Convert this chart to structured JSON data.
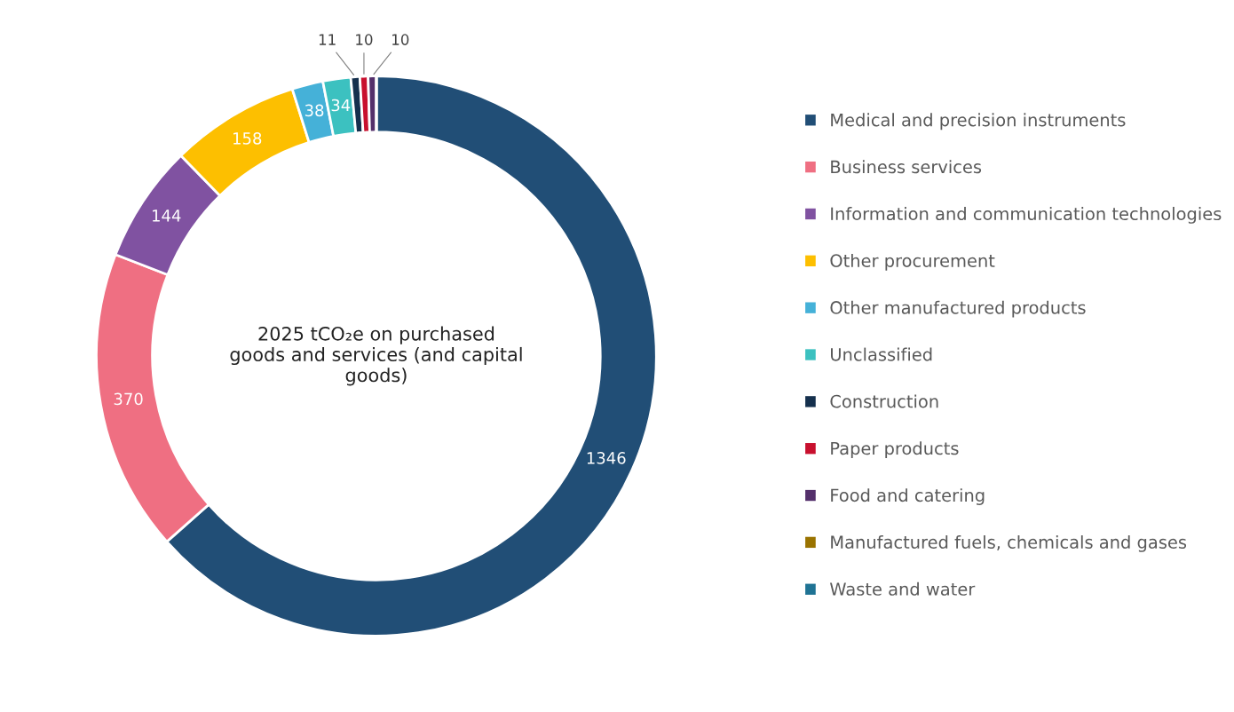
{
  "chart_data": {
    "type": "donut",
    "title": "2025 tCO₂e on purchased goods and services (and capital goods)",
    "categories": [
      "Medical and precision instruments",
      "Business services",
      "Information and communication technologies",
      "Other procurement",
      "Other manufactured products",
      "Unclassified",
      "Construction",
      "Paper products",
      "Food and catering",
      "Manufactured fuels, chemicals and gases",
      "Waste and water"
    ],
    "values": [
      1346,
      370,
      144,
      158,
      38,
      34,
      11,
      10,
      10,
      0,
      0
    ],
    "colors": [
      "#214e76",
      "#ef6f82",
      "#8052a1",
      "#fdbf00",
      "#45b1d8",
      "#3cc1c0",
      "#15304d",
      "#c8102e",
      "#54306b",
      "#9a7300",
      "#1f7394"
    ],
    "data_labels": true,
    "legend": "right"
  }
}
